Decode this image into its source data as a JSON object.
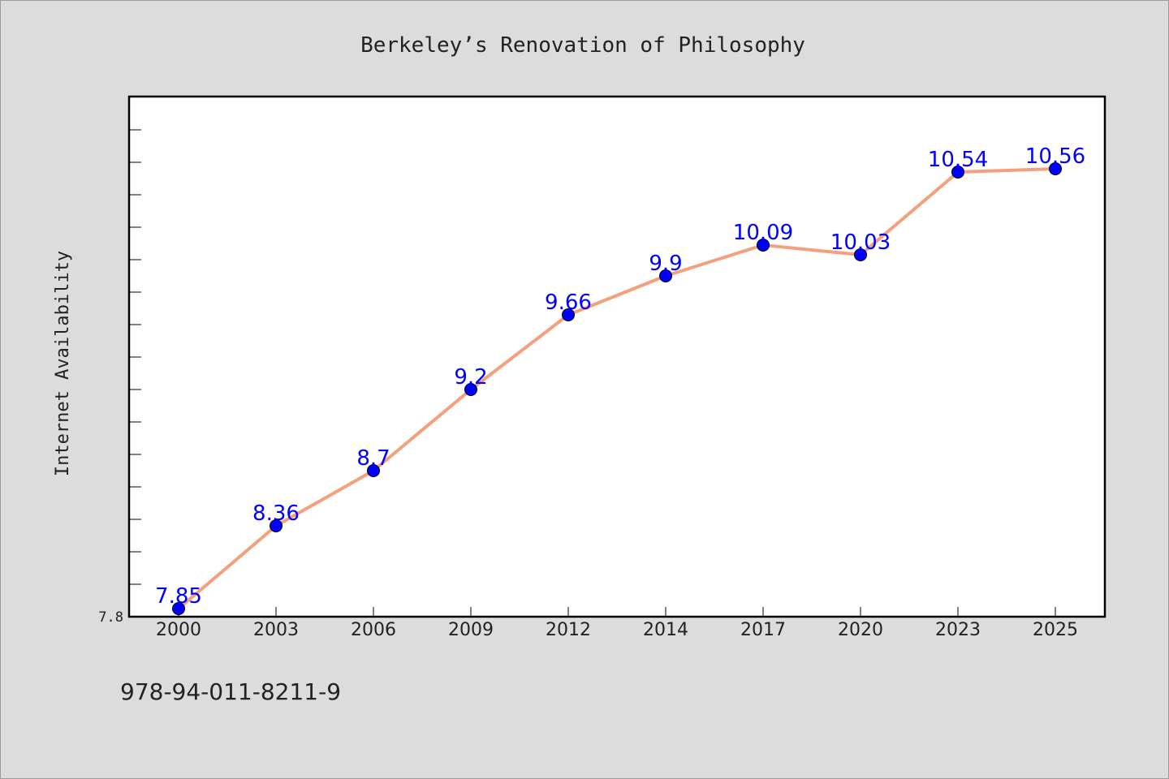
{
  "chart_data": {
    "type": "line",
    "title": "Berkeley’s Renovation of Philosophy",
    "xlabel": "",
    "ylabel": "Internet Availability",
    "categories": [
      "2000",
      "2003",
      "2006",
      "2009",
      "2012",
      "2014",
      "2017",
      "2020",
      "2023",
      "2025"
    ],
    "series": [
      {
        "values": [
          7.85,
          8.36,
          8.7,
          9.2,
          9.66,
          9.9,
          10.09,
          10.03,
          10.54,
          10.56
        ]
      }
    ],
    "data_labels": [
      "7.85",
      "8.36",
      "8.7",
      "9.2",
      "9.66",
      "9.9",
      "10.09",
      "10.03",
      "10.54",
      "10.56"
    ],
    "y_tick_labels": [
      "7.8"
    ],
    "ylim": [
      7.8,
      11.0
    ],
    "grid": false,
    "line_color": "#f4a07e",
    "marker_color": "#0000ff",
    "label_color": "#0000ff"
  },
  "footnote": "978-94-011-8211-9"
}
